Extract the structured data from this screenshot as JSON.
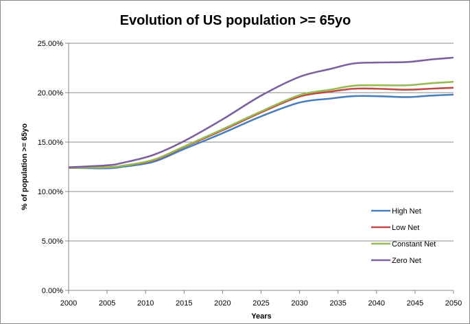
{
  "chart_data": {
    "type": "line",
    "title": "Evolution of US population >= 65yo",
    "xlabel": "Years",
    "ylabel": "% of population >= 65yo",
    "xlim": [
      2000,
      2050
    ],
    "ylim": [
      0,
      25
    ],
    "x_ticks": [
      "2000",
      "2005",
      "2010",
      "2015",
      "2020",
      "2025",
      "2030",
      "2035",
      "2040",
      "2045",
      "2050"
    ],
    "y_ticks": [
      "0.00%",
      "5.00%",
      "10.00%",
      "15.00%",
      "20.00%",
      "25.00%"
    ],
    "grid": "horizontal",
    "legend_position": "right",
    "x": [
      2000,
      2005,
      2007,
      2011,
      2015,
      2020,
      2025,
      2030,
      2034,
      2037,
      2040,
      2044,
      2047,
      2050
    ],
    "series": [
      {
        "name": "High Net",
        "color": "#4a7ebb",
        "values": [
          12.4,
          12.35,
          12.5,
          13.0,
          14.3,
          15.9,
          17.6,
          19.0,
          19.4,
          19.65,
          19.65,
          19.55,
          19.7,
          19.8
        ]
      },
      {
        "name": "Low Net",
        "color": "#be4b48",
        "values": [
          12.4,
          12.45,
          12.6,
          13.15,
          14.5,
          16.2,
          18.0,
          19.6,
          20.1,
          20.4,
          20.4,
          20.3,
          20.4,
          20.5
        ]
      },
      {
        "name": "Constant Net",
        "color": "#98b954",
        "values": [
          12.4,
          12.45,
          12.6,
          13.2,
          14.55,
          16.3,
          18.1,
          19.75,
          20.3,
          20.7,
          20.75,
          20.75,
          20.95,
          21.1
        ]
      },
      {
        "name": "Zero Net",
        "color": "#7d60a0",
        "values": [
          12.45,
          12.65,
          12.9,
          13.7,
          15.1,
          17.3,
          19.7,
          21.6,
          22.4,
          22.95,
          23.05,
          23.1,
          23.35,
          23.55
        ]
      }
    ]
  }
}
